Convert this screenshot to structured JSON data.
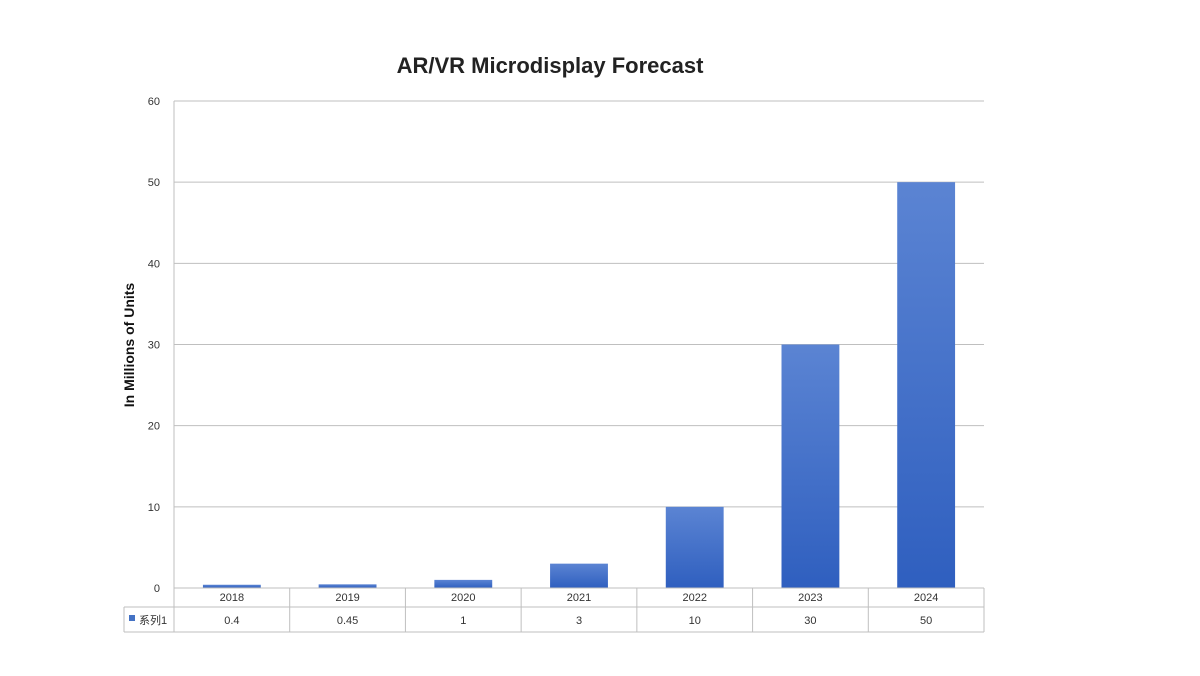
{
  "chart_data": {
    "type": "bar",
    "title": "AR/VR Microdisplay Forecast",
    "xlabel": "",
    "ylabel": "In Millions of Units",
    "ylim": [
      0,
      60
    ],
    "yticks": [
      0,
      10,
      20,
      30,
      40,
      50,
      60
    ],
    "grid": true,
    "categories": [
      "2018",
      "2019",
      "2020",
      "2021",
      "2022",
      "2023",
      "2024"
    ],
    "series": [
      {
        "name": "系列1",
        "values": [
          0.4,
          0.45,
          1,
          3,
          10,
          30,
          50
        ],
        "value_labels": [
          "0.4",
          "0.45",
          "1",
          "3",
          "10",
          "30",
          "50"
        ],
        "color": "#4472c4"
      }
    ],
    "data_table": true
  }
}
